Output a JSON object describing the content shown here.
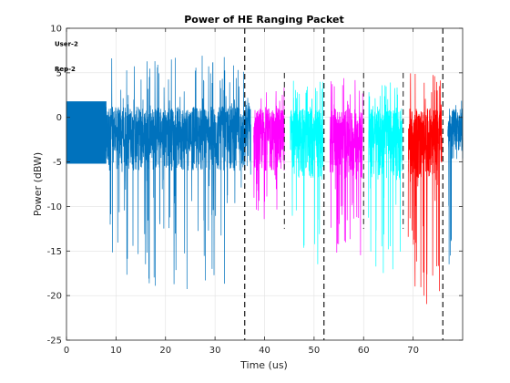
{
  "chart_data": {
    "type": "line",
    "title": "Power of HE Ranging Packet",
    "xlabel": "Time (us)",
    "ylabel": "Power (dBW)",
    "xlim": [
      0,
      80
    ],
    "ylim": [
      -25,
      10
    ],
    "xticks": [
      0,
      10,
      20,
      30,
      40,
      50,
      60,
      70
    ],
    "yticks": [
      -25,
      -20,
      -15,
      -10,
      -5,
      0,
      5,
      10
    ],
    "grid": true,
    "field_boundaries_us": [
      36,
      52,
      76
    ],
    "subfield_boundaries_us": [
      44,
      60,
      68
    ],
    "annotations": [
      {
        "text": "User-2",
        "x": 8,
        "y": 8.0
      },
      {
        "text": "Rep-2",
        "x": 8,
        "y": 5.2
      }
    ],
    "segments": [
      {
        "x_start": 0,
        "x_end": 8,
        "color": "#0072BD",
        "profile": "flat",
        "base": 1.8,
        "floor": -5.2,
        "dip": 0
      },
      {
        "x_start": 8,
        "x_end": 36,
        "color": "#0072BD",
        "profile": "noisy",
        "base": 1.2,
        "peak": 7.0,
        "floor": -6.0,
        "dip": -19.5
      },
      {
        "x_start": 36,
        "x_end": 37.2,
        "color": "#0072BD",
        "profile": "noisy",
        "base": 1.5,
        "peak": 2.5,
        "floor": -5.0,
        "dip": -10.0
      },
      {
        "x_start": 37.8,
        "x_end": 44,
        "color": "#FF00FF",
        "profile": "noisy",
        "base": 1.0,
        "peak": 3.5,
        "floor": -6.0,
        "dip": -12.0
      },
      {
        "x_start": 45.2,
        "x_end": 51.8,
        "color": "#00FFFF",
        "profile": "noisy",
        "base": 1.0,
        "peak": 4.5,
        "floor": -7.0,
        "dip": -17.5
      },
      {
        "x_start": 53.2,
        "x_end": 59.8,
        "color": "#FF00FF",
        "profile": "noisy",
        "base": 1.0,
        "peak": 4.5,
        "floor": -7.0,
        "dip": -15.5
      },
      {
        "x_start": 61.0,
        "x_end": 67.8,
        "color": "#00FFFF",
        "profile": "noisy",
        "base": 1.0,
        "peak": 4.0,
        "floor": -7.0,
        "dip": -17.5
      },
      {
        "x_start": 69.0,
        "x_end": 75.8,
        "color": "#FF0000",
        "profile": "noisy",
        "base": 1.0,
        "peak": 5.0,
        "floor": -7.0,
        "dip": -21.0
      },
      {
        "x_start": 77.0,
        "x_end": 80,
        "color": "#0072BD",
        "profile": "noisy",
        "base": 1.0,
        "peak": 5.0,
        "floor": -5.0,
        "dip": -20.5
      }
    ]
  }
}
